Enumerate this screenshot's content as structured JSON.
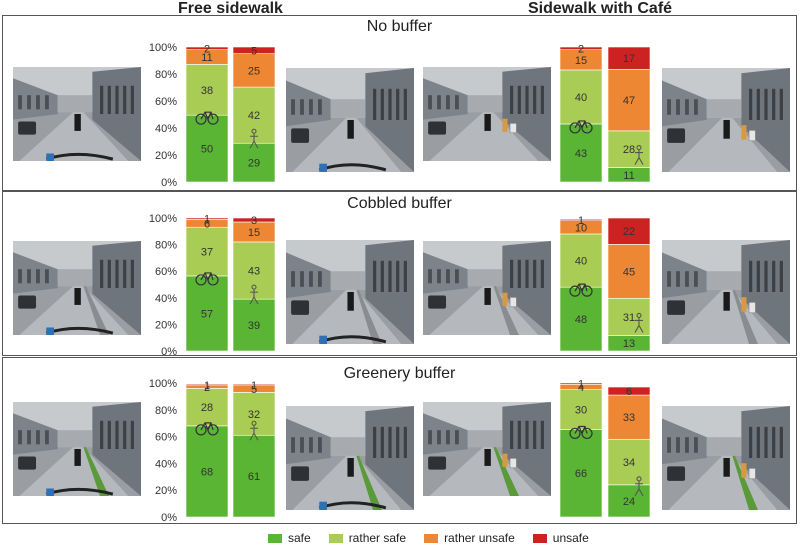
{
  "column_headers": {
    "left": "Free sidewalk",
    "right": "Sidewalk with Café"
  },
  "colors": {
    "safe": "#5ab535",
    "rather_safe": "#a9cc55",
    "rather_unsafe": "#ee8733",
    "unsafe": "#cc2222"
  },
  "legend": [
    {
      "key": "safe",
      "label": "safe"
    },
    {
      "key": "rather_safe",
      "label": "rather safe"
    },
    {
      "key": "rather_unsafe",
      "label": "rather unsafe"
    },
    {
      "key": "unsafe",
      "label": "unsafe"
    }
  ],
  "icons": {
    "cyclist": "bicycle-icon",
    "pedestrian": "pedestrian-icon"
  },
  "chart_data": [
    {
      "type": "bar",
      "title": "No buffer",
      "group": "Free sidewalk",
      "categories": [
        "cyclist",
        "pedestrian"
      ],
      "ylim": [
        0,
        100
      ],
      "yticks": [
        "0%",
        "20%",
        "40%",
        "60%",
        "80%",
        "100%"
      ],
      "series": [
        {
          "name": "safe",
          "values": [
            50,
            29
          ]
        },
        {
          "name": "rather safe",
          "values": [
            38,
            42
          ]
        },
        {
          "name": "rather unsafe",
          "values": [
            11,
            25
          ]
        },
        {
          "name": "unsafe",
          "values": [
            2,
            5
          ]
        }
      ]
    },
    {
      "type": "bar",
      "title": "No buffer",
      "group": "Sidewalk with Café",
      "categories": [
        "cyclist",
        "pedestrian"
      ],
      "ylim": [
        0,
        100
      ],
      "series": [
        {
          "name": "safe",
          "values": [
            43,
            11
          ]
        },
        {
          "name": "rather safe",
          "values": [
            40,
            28
          ]
        },
        {
          "name": "rather unsafe",
          "values": [
            15,
            47
          ]
        },
        {
          "name": "unsafe",
          "values": [
            2,
            17
          ]
        }
      ]
    },
    {
      "type": "bar",
      "title": "Cobbled buffer",
      "group": "Free sidewalk",
      "categories": [
        "cyclist",
        "pedestrian"
      ],
      "ylim": [
        0,
        100
      ],
      "yticks": [
        "0%",
        "20%",
        "40%",
        "60%",
        "80%",
        "100%"
      ],
      "series": [
        {
          "name": "safe",
          "values": [
            57,
            39
          ]
        },
        {
          "name": "rather safe",
          "values": [
            37,
            43
          ]
        },
        {
          "name": "rather unsafe",
          "values": [
            6,
            15
          ]
        },
        {
          "name": "unsafe",
          "values": [
            1,
            3
          ]
        }
      ]
    },
    {
      "type": "bar",
      "title": "Cobbled buffer",
      "group": "Sidewalk with Café",
      "categories": [
        "cyclist",
        "pedestrian"
      ],
      "ylim": [
        0,
        100
      ],
      "series": [
        {
          "name": "safe",
          "values": [
            48,
            13
          ]
        },
        {
          "name": "rather safe",
          "values": [
            40,
            31
          ]
        },
        {
          "name": "rather unsafe",
          "values": [
            10,
            45
          ]
        },
        {
          "name": "unsafe",
          "values": [
            1,
            22
          ]
        }
      ]
    },
    {
      "type": "bar",
      "title": "Greenery buffer",
      "group": "Free sidewalk",
      "categories": [
        "cyclist",
        "pedestrian"
      ],
      "ylim": [
        0,
        100
      ],
      "yticks": [
        "0%",
        "20%",
        "40%",
        "60%",
        "80%",
        "100%"
      ],
      "series": [
        {
          "name": "safe",
          "values": [
            68,
            61
          ]
        },
        {
          "name": "rather safe",
          "values": [
            28,
            32
          ]
        },
        {
          "name": "rather unsafe",
          "values": [
            2,
            5
          ]
        },
        {
          "name": "unsafe",
          "values": [
            1,
            1
          ]
        }
      ]
    },
    {
      "type": "bar",
      "title": "Greenery buffer",
      "group": "Sidewalk with Café",
      "categories": [
        "cyclist",
        "pedestrian"
      ],
      "ylim": [
        0,
        100
      ],
      "series": [
        {
          "name": "safe",
          "values": [
            66,
            24
          ]
        },
        {
          "name": "rather safe",
          "values": [
            30,
            34
          ]
        },
        {
          "name": "rather unsafe",
          "values": [
            4,
            33
          ]
        },
        {
          "name": "unsafe",
          "values": [
            1,
            6
          ]
        }
      ]
    }
  ]
}
